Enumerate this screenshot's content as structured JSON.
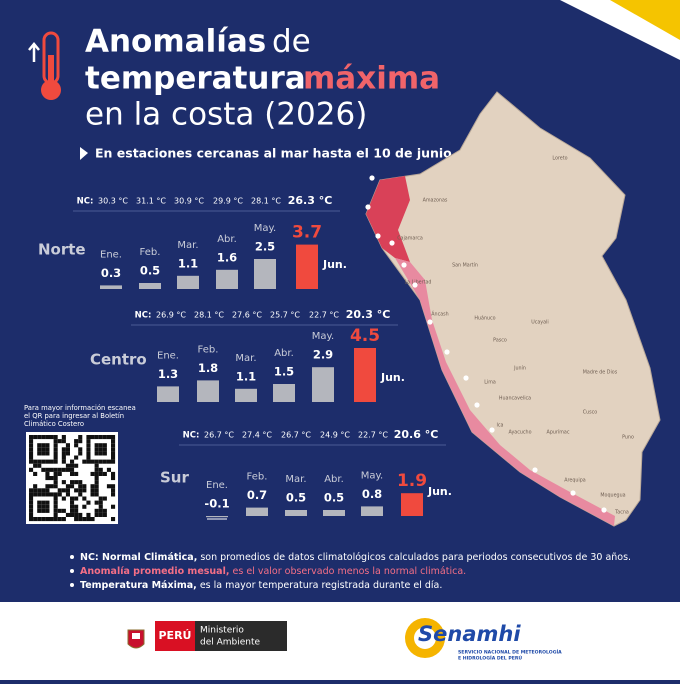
{
  "header": {
    "title": [
      "Anomalías",
      "de",
      "temperatura",
      "máxima",
      "en la costa (2026)"
    ],
    "subtitle": "En estaciones cercanas al mar hasta el 10 de junio"
  },
  "chart_data": [
    {
      "type": "bar",
      "title": "Norte",
      "nc_label": "NC:",
      "normals": [
        "30.3 °C",
        "31.1 °C",
        "30.9 °C",
        "29.9 °C",
        "28.1 °C",
        "26.3 °C"
      ],
      "categories": [
        "Ene.",
        "Feb.",
        "Mar.",
        "Abr.",
        "May.",
        "Jun."
      ],
      "values": [
        0.3,
        0.5,
        1.1,
        1.6,
        2.5,
        3.7
      ],
      "color": "#b4b6bd",
      "highlight_color": "#f04a3e"
    },
    {
      "type": "bar",
      "title": "Centro",
      "nc_label": "NC:",
      "normals": [
        "26.9 °C",
        "28.1 °C",
        "27.6 °C",
        "25.7 °C",
        "22.7 °C",
        "20.3 °C"
      ],
      "categories": [
        "Ene.",
        "Feb.",
        "Mar.",
        "Abr.",
        "May.",
        "Jun."
      ],
      "values": [
        1.3,
        1.8,
        1.1,
        1.5,
        2.9,
        4.5
      ],
      "color": "#b4b6bd",
      "highlight_color": "#f04a3e"
    },
    {
      "type": "bar",
      "title": "Sur",
      "nc_label": "NC:",
      "normals": [
        "26.7 °C",
        "27.4 °C",
        "26.7 °C",
        "24.9 °C",
        "22.7 °C",
        "20.6 °C"
      ],
      "categories": [
        "Ene.",
        "Feb.",
        "Mar.",
        "Abr.",
        "May.",
        "Jun."
      ],
      "values": [
        -0.1,
        0.7,
        0.5,
        0.5,
        0.8,
        1.9
      ],
      "color": "#b4b6bd",
      "highlight_color": "#f04a3e"
    }
  ],
  "qr_text": [
    "Para mayor información escanea",
    "el QR para ingresar al Boletín",
    "Climático Costero"
  ],
  "notes": [
    {
      "term": "NC: Normal Climática,",
      "text": "son promedios de datos climatológicos calculados para periodos consecutivos de 30 años."
    },
    {
      "term": "Anomalía promedio mesual,",
      "text": "es el valor observado menos la normal climática."
    },
    {
      "term": "Temperatura Máxima,",
      "text": "es la mayor temperatura registrada durante el día."
    }
  ],
  "map": {
    "labels": [
      "Loreto",
      "Amazonas",
      "Cajamarca",
      "San Martín",
      "La Libertad",
      "Áncash",
      "Huánuco",
      "Ucayali",
      "Pasco",
      "Lima",
      "Junín",
      "Huancavelica",
      "Ica",
      "Ayacucho",
      "Apurímac",
      "Cusco",
      "Madre de Dios",
      "Puno",
      "Arequipa",
      "Moquegua",
      "Tacna"
    ]
  },
  "footer": {
    "peru": "PERÚ",
    "ministry": [
      "Ministerio",
      "del Ambiente"
    ],
    "senamhi": "Senamhi",
    "senamhi_sub": [
      "SERVICIO NACIONAL DE METEOROLOGÍA",
      "E HIDROLOGÍA DEL PERÚ"
    ]
  }
}
